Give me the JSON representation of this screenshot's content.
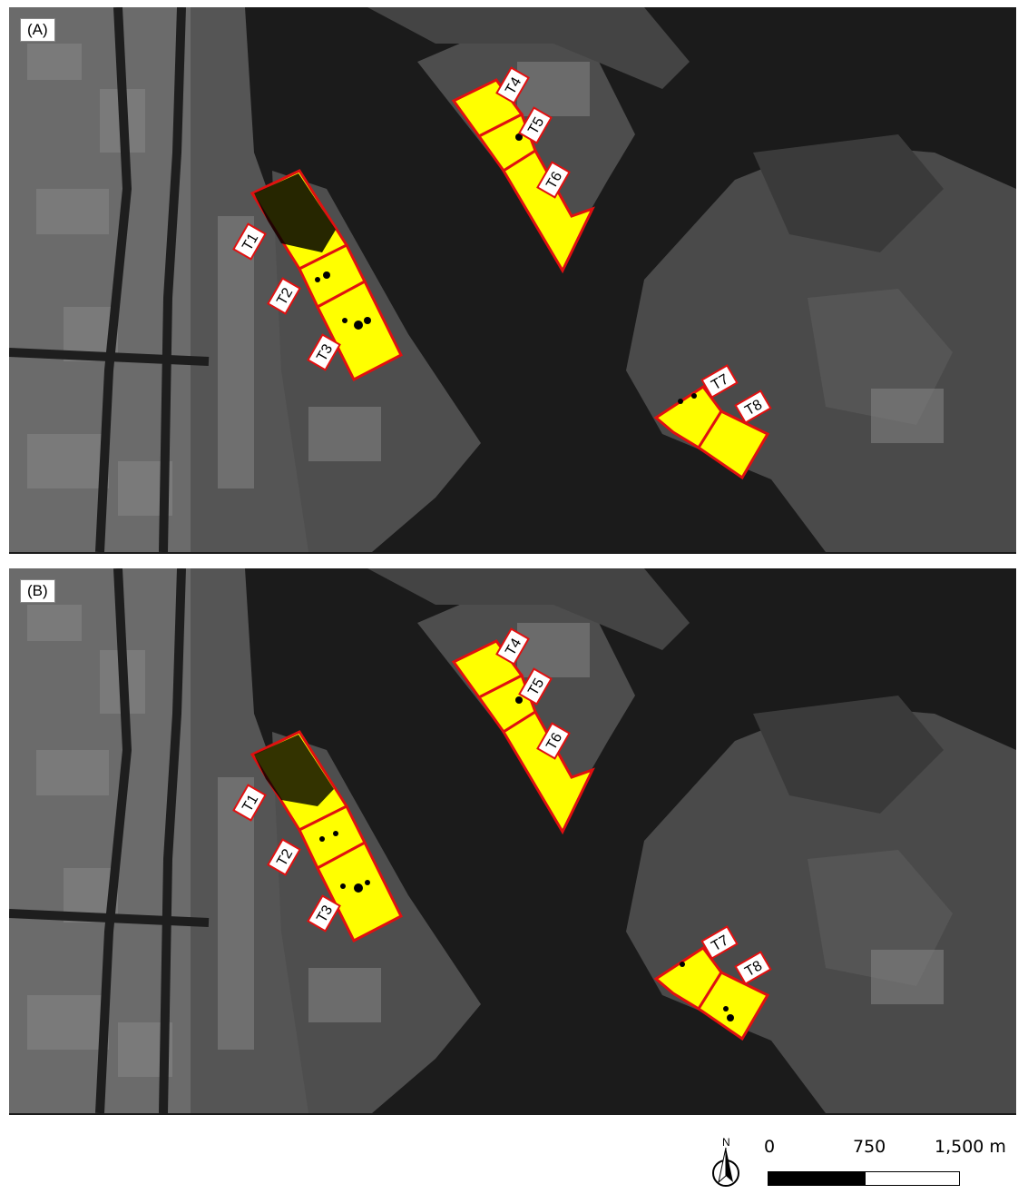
{
  "panels": [
    {
      "label": "(A)",
      "labels": [
        "T1",
        "T2",
        "T3",
        "T4",
        "T5",
        "T6",
        "T7",
        "T8"
      ]
    },
    {
      "label": "(B)",
      "labels": [
        "T1",
        "T2",
        "T3",
        "T4",
        "T5",
        "T6",
        "T7",
        "T8"
      ]
    }
  ],
  "scale_bar": {
    "ticks": [
      "0",
      "750",
      "1,500 m"
    ]
  },
  "north_arrow": {
    "letter": "N"
  },
  "colors": {
    "terminal_fill": "#ffff00",
    "terminal_border": "#e01010",
    "water": "#1b1b1b",
    "land": "#5a5a5a"
  }
}
